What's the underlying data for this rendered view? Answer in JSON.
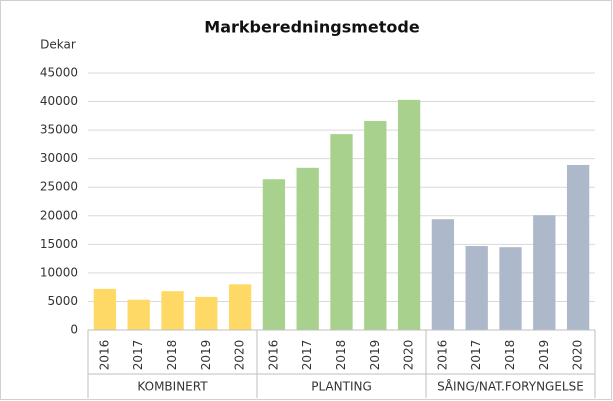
{
  "chart_data": {
    "type": "bar",
    "title": "Markberedningsmetode",
    "y_label": "Dekar",
    "series": [
      {
        "name": "KOMBINERT",
        "color": "#FFD966",
        "categories": [
          "2016",
          "2017",
          "2018",
          "2019",
          "2020"
        ],
        "values": [
          7200,
          5300,
          6800,
          5800,
          8000
        ]
      },
      {
        "name": "PLANTING",
        "color": "#A9D18E",
        "categories": [
          "2016",
          "2017",
          "2018",
          "2019",
          "2020"
        ],
        "values": [
          26400,
          28400,
          34300,
          36600,
          40300
        ]
      },
      {
        "name": "SÅING/NAT.FORYNGELSE",
        "color": "#ADB9CA",
        "categories": [
          "2016",
          "2017",
          "2018",
          "2019",
          "2020"
        ],
        "values": [
          19400,
          14700,
          14500,
          20100,
          28900
        ]
      }
    ],
    "ylim": [
      0,
      45000
    ],
    "yticks": [
      0,
      5000,
      10000,
      15000,
      20000,
      25000,
      30000,
      35000,
      40000,
      45000
    ],
    "grid": true
  }
}
